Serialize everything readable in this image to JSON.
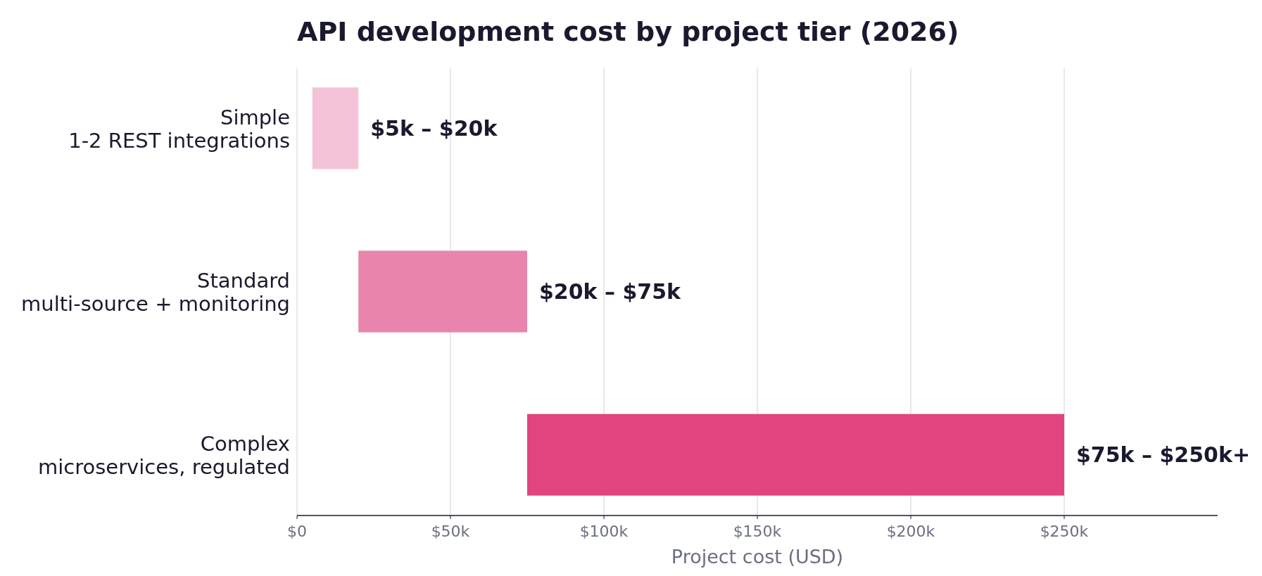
{
  "chart_data": {
    "type": "bar",
    "orientation": "horizontal",
    "title": "API development cost by project tier (2026)",
    "xlabel": "Project cost (USD)",
    "categories": [
      "Simple\n1-2 REST integrations",
      "Standard\nmulti-source + monitoring",
      "Complex\nmicroservices, regulated"
    ],
    "base": [
      5000,
      20000,
      75000
    ],
    "values": [
      15000,
      55000,
      175000
    ],
    "colors": [
      "#f5c3d7",
      "#e985ad",
      "#e04580"
    ],
    "annotations": [
      {
        "text": "$5k – $20k",
        "x": 20000,
        "y": "Simple\n1-2 REST integrations"
      },
      {
        "text": "$20k – $75k",
        "x": 75000,
        "y": "Standard\nmulti-source + monitoring"
      },
      {
        "text": "$75k – $250k+",
        "x": 250000,
        "y": "Complex\nmicroservices, regulated"
      }
    ],
    "xlim": [
      0,
      300000
    ],
    "xticks": [
      {
        "value": 0,
        "label": "$0"
      },
      {
        "value": 50000,
        "label": "$50k"
      },
      {
        "value": 100000,
        "label": "$100k"
      },
      {
        "value": 150000,
        "label": "$150k"
      },
      {
        "value": 200000,
        "label": "$200k"
      },
      {
        "value": 250000,
        "label": "$250k"
      }
    ],
    "grid": "x"
  }
}
